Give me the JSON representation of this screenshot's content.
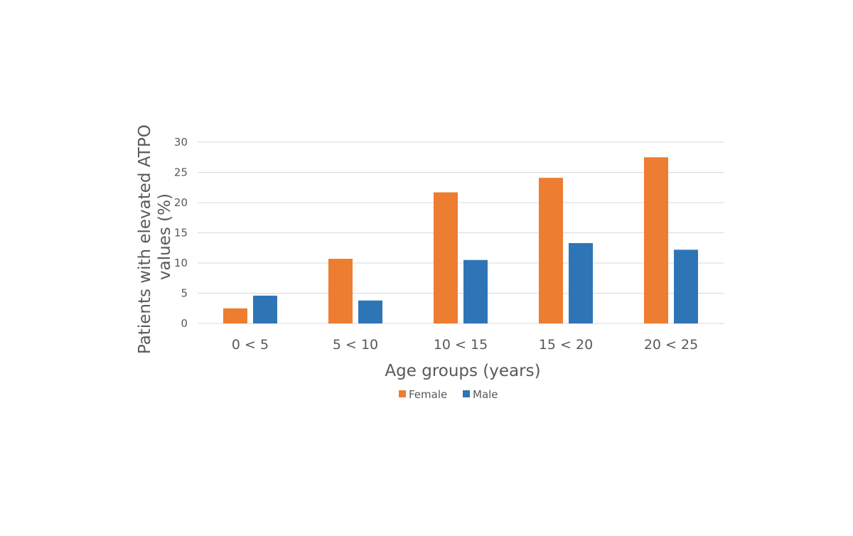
{
  "chart_data": {
    "type": "bar",
    "title": "",
    "xlabel": "Age groups (years)",
    "ylabel_lines": [
      "Patients with elevated ATPO",
      "values (%)"
    ],
    "categories": [
      "0 < 5",
      "5 < 10",
      "10 < 15",
      "15 < 20",
      "20 < 25"
    ],
    "series": [
      {
        "name": "Female",
        "color": "#ed7d31",
        "values": [
          2.5,
          10.7,
          21.7,
          24.1,
          27.5
        ]
      },
      {
        "name": "Male",
        "color": "#2e75b6",
        "values": [
          4.6,
          3.8,
          10.5,
          13.3,
          12.2
        ]
      }
    ],
    "ylim": [
      0,
      30
    ],
    "yticks": [
      "0",
      "5",
      "10",
      "15",
      "20",
      "25",
      "30"
    ],
    "grid": true,
    "legend_position": "bottom"
  }
}
